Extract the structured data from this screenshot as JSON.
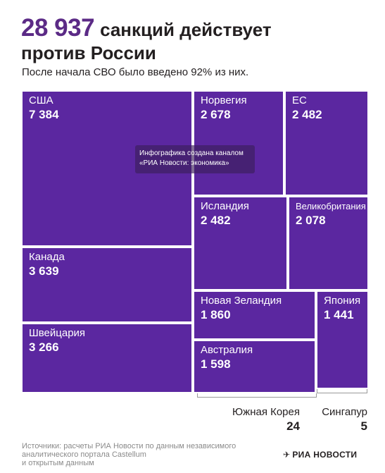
{
  "headline": {
    "number": "28 937",
    "text1": "санкций действует",
    "text2": "против России"
  },
  "subtitle": "После начала СВО было введено 92% из них.",
  "watermark": {
    "line1": "Инфографика создана каналом",
    "line2": "«РИА Новости: экономика»"
  },
  "chart_data": {
    "type": "treemap",
    "total": 28937,
    "items": [
      {
        "name": "США",
        "label": "7 384",
        "value": 7384
      },
      {
        "name": "Канада",
        "label": "3 639",
        "value": 3639
      },
      {
        "name": "Швейцария",
        "label": "3 266",
        "value": 3266
      },
      {
        "name": "Норвегия",
        "label": "2 678",
        "value": 2678
      },
      {
        "name": "ЕС",
        "label": "2 482",
        "value": 2482
      },
      {
        "name": "Исландия",
        "label": "2 482",
        "value": 2482
      },
      {
        "name": "Великобритания",
        "label": "2 078",
        "value": 2078
      },
      {
        "name": "Новая Зеландия",
        "label": "1 860",
        "value": 1860
      },
      {
        "name": "Япония",
        "label": "1 441",
        "value": 1441
      },
      {
        "name": "Австралия",
        "label": "1 598",
        "value": 1598
      },
      {
        "name": "Южная Корея",
        "label": "24",
        "value": 24
      },
      {
        "name": "Сингапур",
        "label": "5",
        "value": 5
      }
    ],
    "colors": {
      "cell": "#5b27a0",
      "accent": "#5b2a86"
    }
  },
  "source": {
    "line1": "Источники: расчеты РИА Новости по данным независимого",
    "line2": "аналитического портала Castellum",
    "line3": "и открытым данным"
  },
  "logo": {
    "text": "РИА НОВОСТИ"
  }
}
